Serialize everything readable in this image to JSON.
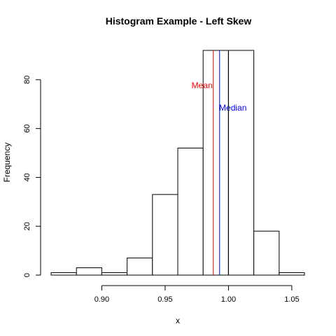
{
  "chart_data": {
    "type": "histogram",
    "title": "Histogram Example - Left Skew",
    "xlabel": "x",
    "ylabel": "Frequency",
    "xlim": [
      0.86,
      1.06
    ],
    "ylim": [
      0,
      92
    ],
    "x_ticks": [
      0.9,
      0.95,
      1.0,
      1.05
    ],
    "x_tick_labels": [
      "0.90",
      "0.95",
      "1.00",
      "1.05"
    ],
    "y_ticks": [
      0,
      20,
      40,
      60,
      80
    ],
    "y_tick_labels": [
      "0",
      "20",
      "40",
      "60",
      "80"
    ],
    "bins": [
      {
        "start": 0.86,
        "end": 0.88,
        "count": 1
      },
      {
        "start": 0.88,
        "end": 0.9,
        "count": 3
      },
      {
        "start": 0.9,
        "end": 0.92,
        "count": 1
      },
      {
        "start": 0.92,
        "end": 0.94,
        "count": 7
      },
      {
        "start": 0.94,
        "end": 0.96,
        "count": 33
      },
      {
        "start": 0.96,
        "end": 0.98,
        "count": 52
      },
      {
        "start": 0.98,
        "end": 1.0,
        "count": 92
      },
      {
        "start": 1.0,
        "end": 1.02,
        "count": 92
      },
      {
        "start": 1.02,
        "end": 1.04,
        "count": 18
      },
      {
        "start": 1.04,
        "end": 1.06,
        "count": 1
      }
    ],
    "reference_lines": [
      {
        "label": "Mean",
        "x": 0.988,
        "color": "#ff0000"
      },
      {
        "label": "Median",
        "x": 0.993,
        "color": "#0000ff"
      },
      {
        "label": "",
        "x": 1.0,
        "color": "#000000"
      }
    ],
    "grid": false,
    "bar_fill": "#ffffff",
    "bar_stroke": "#000000"
  }
}
